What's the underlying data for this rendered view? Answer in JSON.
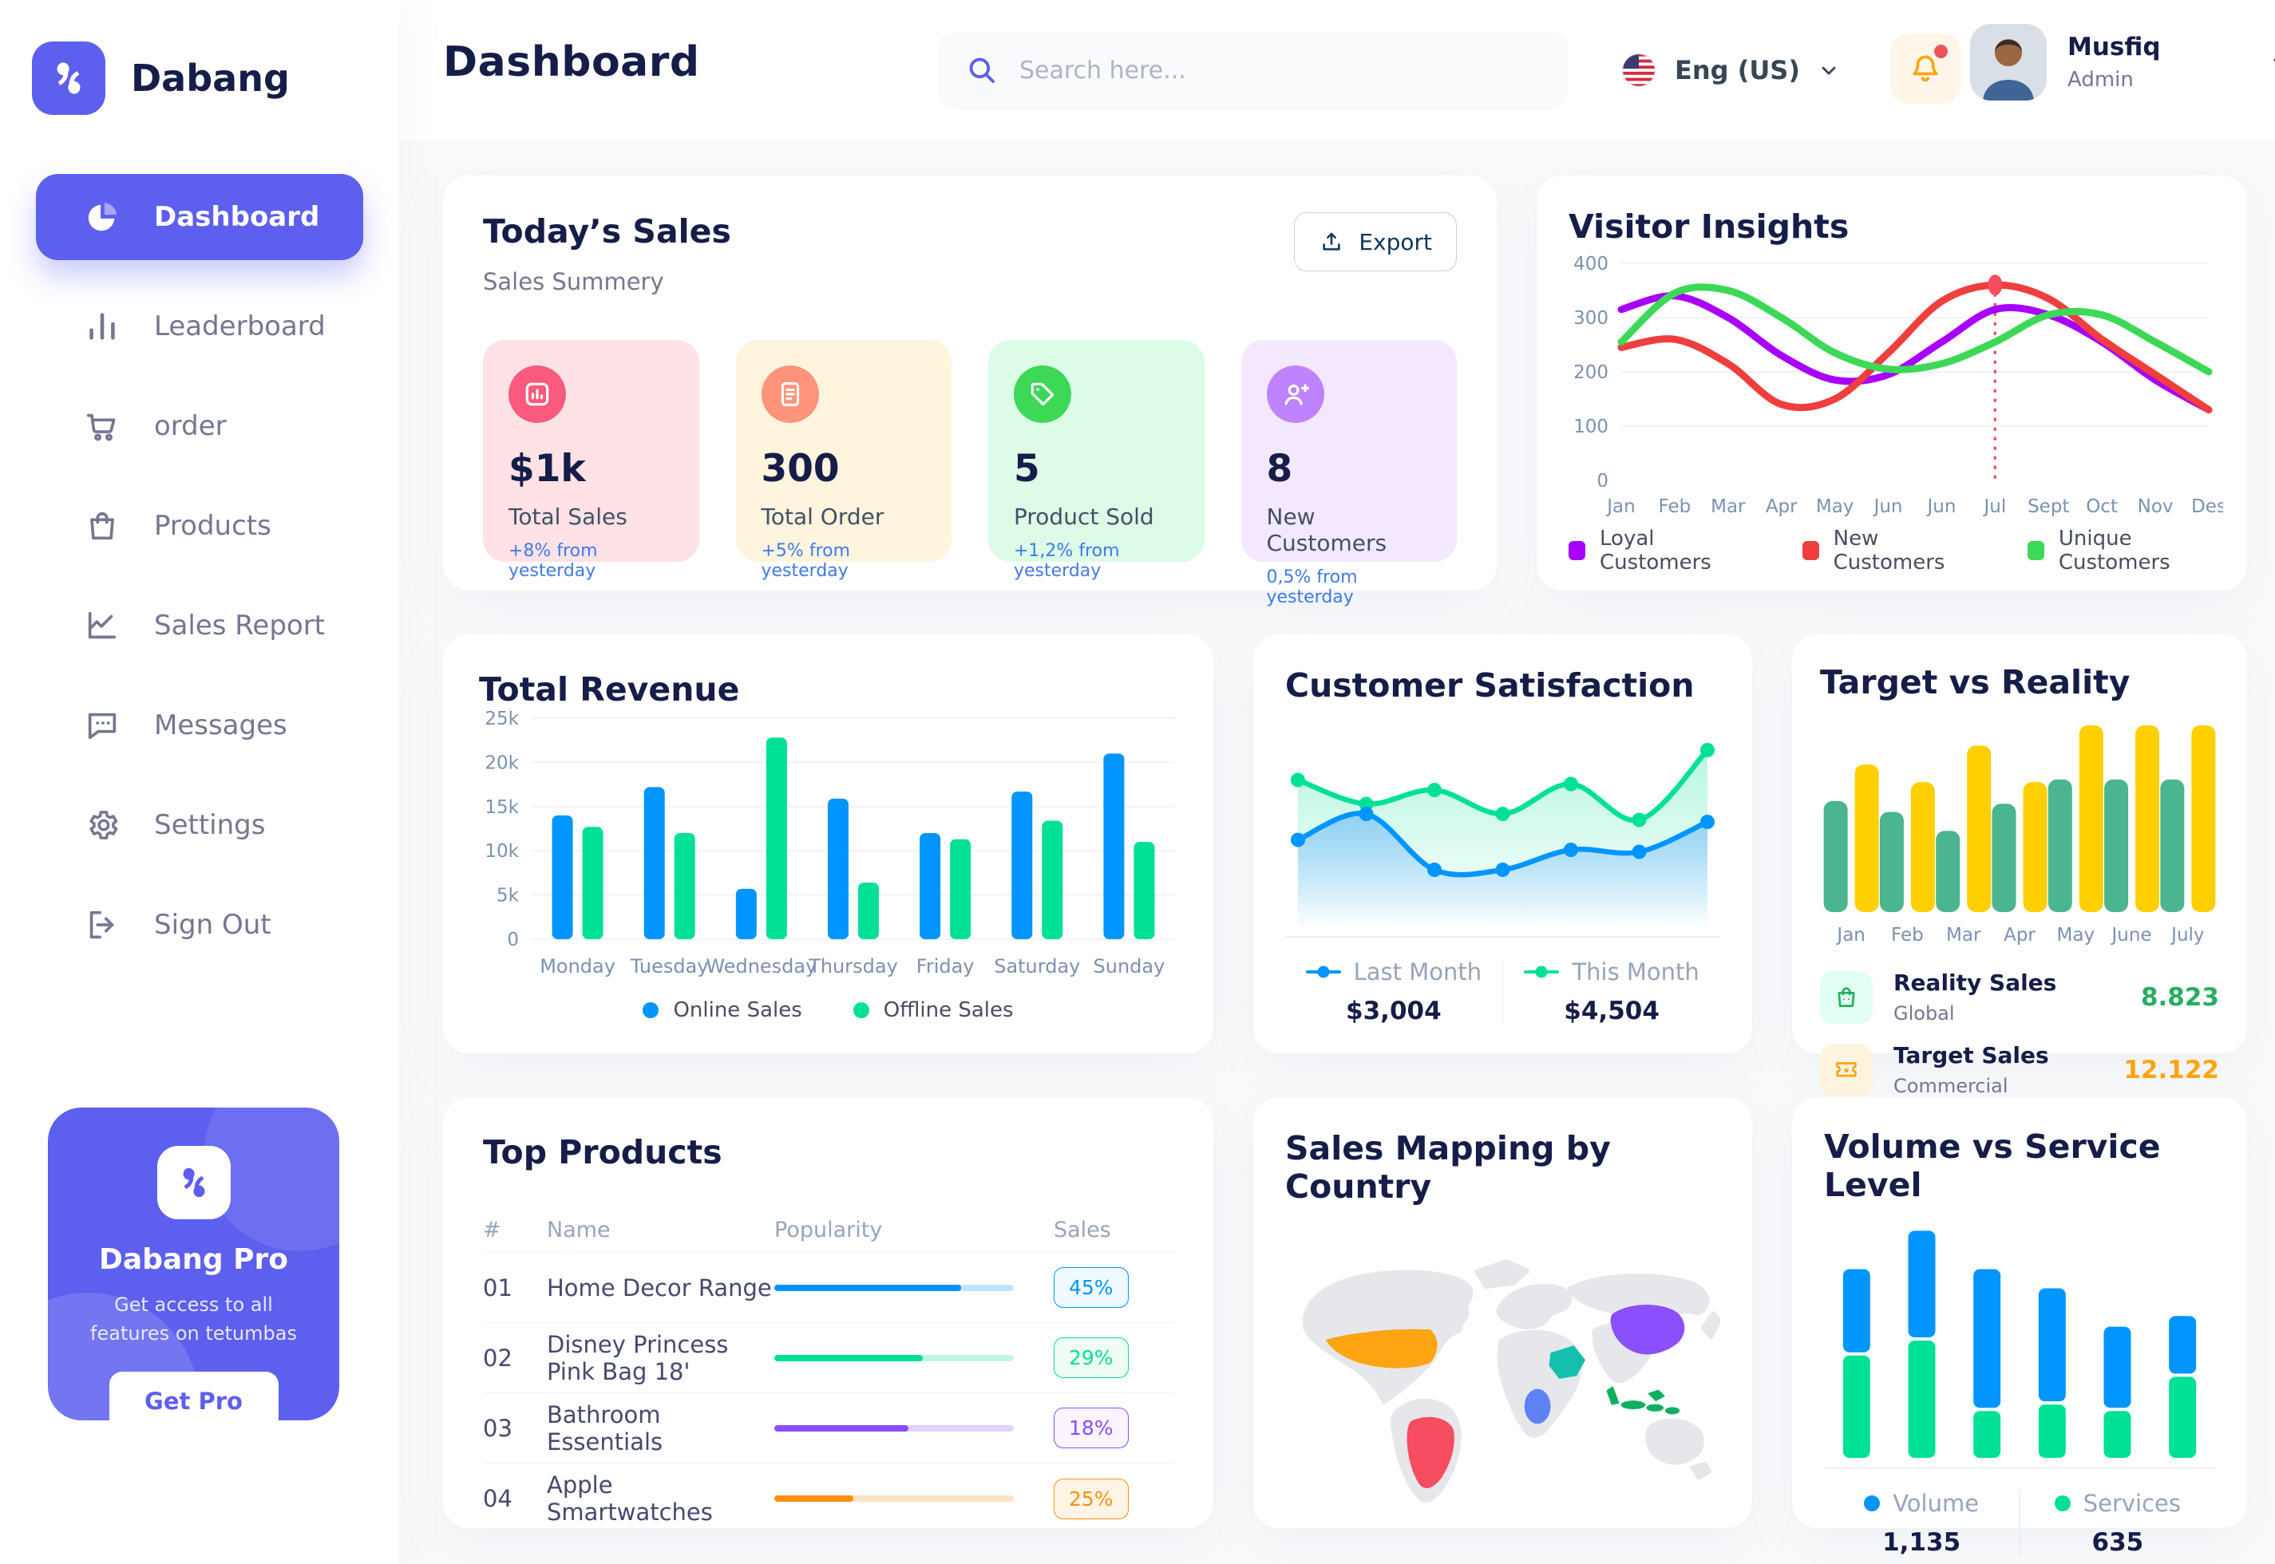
{
  "app": {
    "accent_color": "#5D5FEF",
    "background": "#F9FAFB"
  },
  "brand": {
    "name": "Dabang"
  },
  "header": {
    "title": "Dashboard",
    "search": {
      "placeholder": "Search here...",
      "icon": "search-icon"
    },
    "language": {
      "label": "Eng (US)",
      "flag_icon": "us-flag-icon"
    },
    "notifications": {
      "icon": "bell-icon",
      "has_unread": true
    },
    "user": {
      "name": "Musfiq",
      "role": "Admin"
    }
  },
  "sidebar": {
    "active_item": "Dashboard",
    "items": [
      {
        "label": "Dashboard",
        "icon": "pie-chart-icon"
      },
      {
        "label": "Leaderboard",
        "icon": "bar-chart-icon"
      },
      {
        "label": "order",
        "icon": "cart-icon"
      },
      {
        "label": "Products",
        "icon": "bag-icon"
      },
      {
        "label": "Sales Report",
        "icon": "line-chart-icon"
      },
      {
        "label": "Messages",
        "icon": "message-icon"
      },
      {
        "label": "Settings",
        "icon": "gear-icon"
      },
      {
        "label": "Sign Out",
        "icon": "sign-out-icon"
      }
    ],
    "pro_card": {
      "title": "Dabang Pro",
      "subtitle": "Get access to all features on tetumbas",
      "button_label": "Get Pro",
      "bg": "#5D5FEF"
    }
  },
  "today_sales": {
    "title": "Today’s Sales",
    "subtitle": "Sales Summery",
    "export_label": "Export",
    "delta_color": "#4079ED",
    "cards": [
      {
        "value": "$1k",
        "label": "Total Sales",
        "delta": "+8% from yesterday",
        "bg": "#FFE2E5",
        "icon_bg": "#FA5A7D",
        "icon": "chart-icon"
      },
      {
        "value": "300",
        "label": "Total Order",
        "delta": "+5% from yesterday",
        "bg": "#FFF4DE",
        "icon_bg": "#FF947A",
        "icon": "order-doc-icon"
      },
      {
        "value": "5",
        "label": "Product Sold",
        "delta": "+1,2% from yesterday",
        "bg": "#DCFCE7",
        "icon_bg": "#3CD856",
        "icon": "tag-icon"
      },
      {
        "value": "8",
        "label": "New Customers",
        "delta": "0,5% from yesterday",
        "bg": "#F3E8FF",
        "icon_bg": "#BF83FF",
        "icon": "user-plus-icon"
      }
    ]
  },
  "charts": {
    "visitor_insights": {
      "title": "Visitor Insights",
      "type": "line",
      "x_labels": [
        "Jan",
        "Feb",
        "Mar",
        "Apr",
        "May",
        "Jun",
        "Jun",
        "Jul",
        "Sept",
        "Oct",
        "Nov",
        "Des"
      ],
      "ylim": [
        0,
        400
      ],
      "yticks": [
        0,
        100,
        200,
        300,
        400
      ],
      "highlight_index": 7,
      "highlight_color": "#F64E60",
      "series": [
        {
          "name": "Loyal Customers",
          "color": "#A700FF",
          "values": [
            315,
            340,
            300,
            230,
            185,
            195,
            255,
            315,
            305,
            255,
            185,
            130
          ]
        },
        {
          "name": "New Customers",
          "color": "#EF3E3E",
          "values": [
            245,
            260,
            215,
            140,
            150,
            235,
            330,
            360,
            335,
            260,
            195,
            130
          ]
        },
        {
          "name": "Unique Customers",
          "color": "#3CD856",
          "values": [
            255,
            345,
            350,
            300,
            235,
            205,
            215,
            255,
            305,
            305,
            255,
            200
          ]
        }
      ]
    },
    "total_revenue": {
      "title": "Total Revenue",
      "type": "grouped-bar",
      "x_labels": [
        "Monday",
        "Tuesday",
        "Wednesday",
        "Thursday",
        "Friday",
        "Saturday",
        "Sunday"
      ],
      "ylim": [
        0,
        25
      ],
      "ytick_labels": [
        "0",
        "5k",
        "10k",
        "15k",
        "20k",
        "25k"
      ],
      "series": [
        {
          "name": "Online Sales",
          "color": "#0095FF",
          "values": [
            14,
            17.2,
            5.7,
            15.9,
            12,
            16.7,
            21
          ]
        },
        {
          "name": "Offline Sales",
          "color": "#00E096",
          "values": [
            12.7,
            12,
            22.8,
            6.4,
            11.3,
            13.4,
            11
          ]
        }
      ]
    },
    "customer_satisfaction": {
      "title": "Customer Satisfaction",
      "type": "area",
      "ylim": [
        0,
        100
      ],
      "series": [
        {
          "name": "Last Month",
          "color": "#0095FF",
          "total": "$3,004",
          "values": [
            45,
            58,
            30,
            30,
            40,
            39,
            54
          ]
        },
        {
          "name": "This Month",
          "color": "#00E096",
          "total": "$4,504",
          "values": [
            75,
            63,
            70,
            58,
            73,
            55,
            90
          ]
        }
      ]
    },
    "target_vs_reality": {
      "title": "Target vs Reality",
      "type": "grouped-bar",
      "x_labels": [
        "Jan",
        "Feb",
        "Mar",
        "Apr",
        "May",
        "June",
        "July"
      ],
      "ylim": [
        0,
        14.5
      ],
      "series": [
        {
          "name": "Reality Sales",
          "scope": "Global",
          "color": "#4AB58E",
          "icon": "shopping-bag-icon",
          "icon_bg": "#E2FFF3",
          "total": "8.823",
          "total_color": "#27AE60",
          "values": [
            8.2,
            7.4,
            6.0,
            8.0,
            9.8,
            9.8,
            9.8
          ]
        },
        {
          "name": "Target Sales",
          "scope": "Commercial",
          "color": "#FFCF00",
          "icon": "ticket-icon",
          "icon_bg": "#FFF4DE",
          "total": "12.122",
          "total_color": "#FFA412",
          "values": [
            10.9,
            9.6,
            12.3,
            9.6,
            13.8,
            13.8,
            13.8
          ]
        }
      ]
    },
    "volume_vs_service": {
      "title": "Volume vs Service Level",
      "type": "stacked-bar",
      "ylim": [
        0,
        110
      ],
      "series": [
        {
          "name": "Volume",
          "color": "#0095FF",
          "total": "1,135",
          "values": [
            39,
            50,
            65,
            53,
            38,
            27
          ]
        },
        {
          "name": "Services",
          "color": "#00E096",
          "total": "635",
          "values": [
            48,
            55,
            22,
            25,
            22,
            38
          ]
        }
      ]
    }
  },
  "top_products": {
    "title": "Top Products",
    "headers": [
      "#",
      "Name",
      "Popularity",
      "Sales"
    ],
    "rows": [
      {
        "id": "01",
        "name": "Home Decor Range",
        "popularity": 78,
        "sales": "45%",
        "color": "#0095FF",
        "badge_bg": "#F0F9FF"
      },
      {
        "id": "02",
        "name": "Disney Princess Pink Bag 18'",
        "popularity": 62,
        "sales": "29%",
        "color": "#00E096",
        "badge_bg": "#F0FDF4"
      },
      {
        "id": "03",
        "name": "Bathroom Essentials",
        "popularity": 56,
        "sales": "18%",
        "color": "#884DFF",
        "badge_bg": "#FBF5FF"
      },
      {
        "id": "04",
        "name": "Apple Smartwatches",
        "popularity": 33,
        "sales": "25%",
        "color": "#FF8F0D",
        "badge_bg": "#FFF4E5"
      }
    ]
  },
  "sales_mapping": {
    "title": "Sales Mapping by Country",
    "countries": [
      {
        "id": "usa",
        "name": "United States",
        "color": "#FFA412"
      },
      {
        "id": "brazil",
        "name": "Brazil",
        "color": "#F64E60"
      },
      {
        "id": "china",
        "name": "China",
        "color": "#8950FC"
      },
      {
        "id": "saudi-arabia",
        "name": "Saudi Arabia",
        "color": "#15BFAE"
      },
      {
        "id": "congo",
        "name": "Congo",
        "color": "#5E81F4"
      },
      {
        "id": "indonesia",
        "name": "Indonesia",
        "color": "#0FAF62"
      }
    ]
  }
}
